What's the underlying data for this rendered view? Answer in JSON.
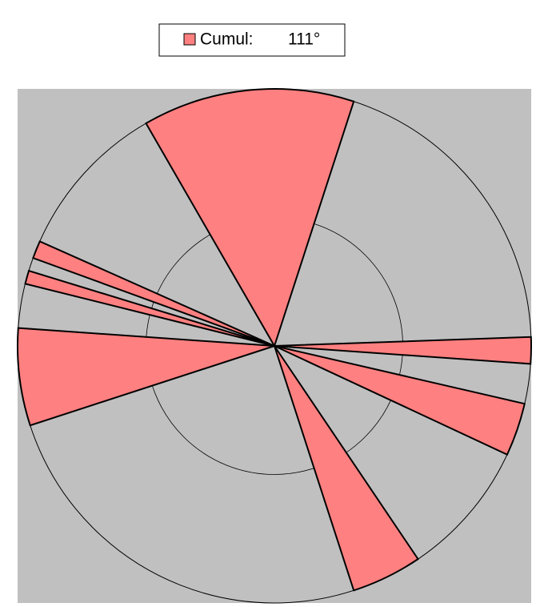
{
  "chart_data": {
    "type": "polar_sectors",
    "series": [
      {
        "name": "Cumul:",
        "color": "#ff8080",
        "values": [
          111
        ],
        "value_labels": [
          "111°"
        ]
      }
    ],
    "sectors": [
      [
        330,
        18
      ],
      [
        88,
        94
      ],
      [
        103,
        115
      ],
      [
        146,
        162
      ],
      [
        252,
        274
      ],
      [
        284,
        287
      ],
      [
        290,
        294
      ]
    ],
    "background": "#c0c0c0"
  }
}
